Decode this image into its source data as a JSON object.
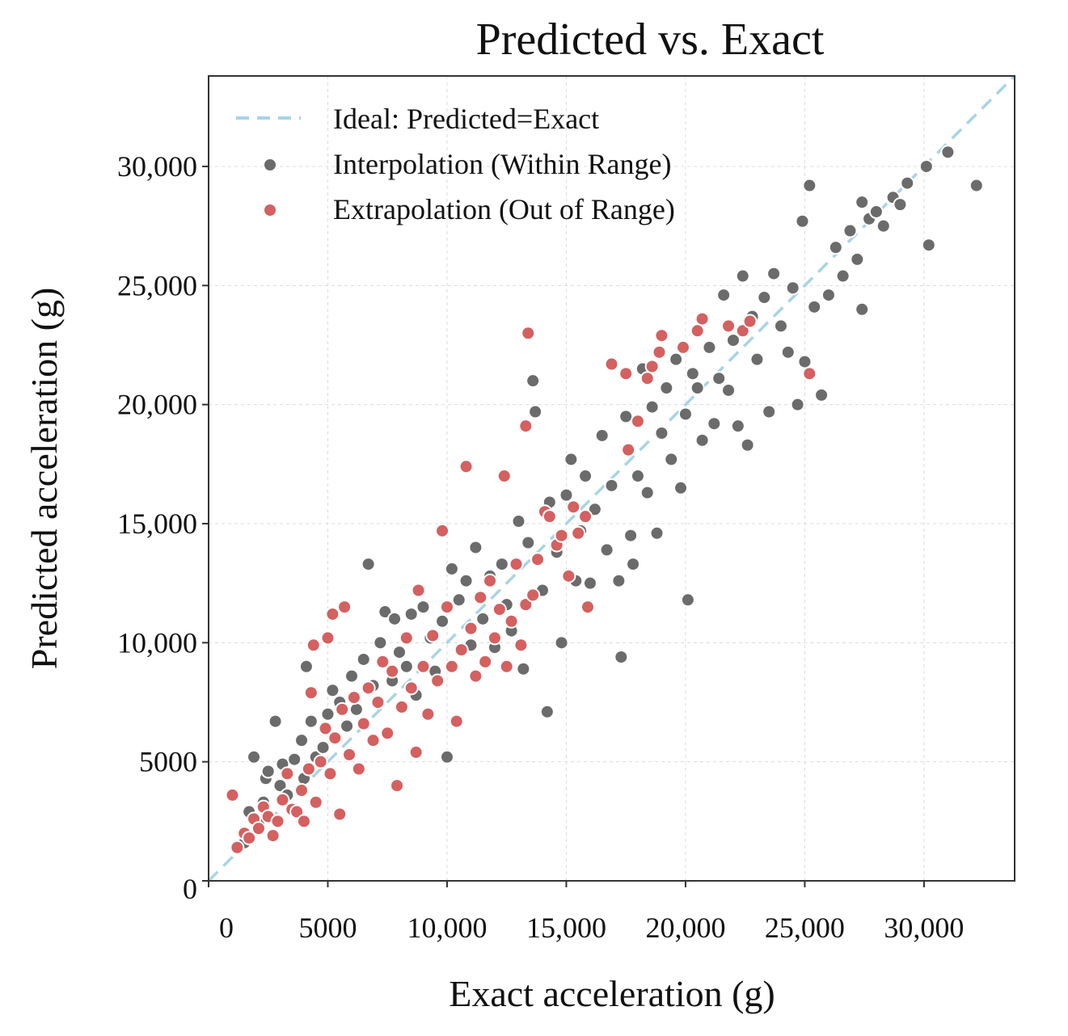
{
  "chart_data": {
    "type": "scatter",
    "title": "Predicted vs. Exact",
    "xlabel": "Exact acceleration (g)",
    "ylabel": "Predicted acceleration (g)",
    "xlim": [
      0,
      33800
    ],
    "ylim": [
      0,
      33800
    ],
    "xticks": [
      0,
      5000,
      10000,
      15000,
      20000,
      25000,
      30000
    ],
    "xtick_labels": [
      "0",
      "5000",
      "10,000",
      "15,000",
      "20,000",
      "25,000",
      "30,000"
    ],
    "yticks": [
      0,
      5000,
      10000,
      15000,
      20000,
      25000,
      30000
    ],
    "ytick_labels": [
      "0",
      "5000",
      "10,000",
      "15,000",
      "20,000",
      "25,000",
      "30,000"
    ],
    "grid": true,
    "legend_position": "top-left",
    "colors": {
      "ideal": "#a8d4e6",
      "interpolation": "#6b6b6b",
      "extrapolation": "#d46060"
    },
    "ideal_line": {
      "label": "Ideal: Predicted=Exact",
      "points": [
        [
          0,
          0
        ],
        [
          33800,
          33800
        ]
      ]
    },
    "series": [
      {
        "name": "Interpolation (Within Range)",
        "points": [
          [
            1500,
            1600
          ],
          [
            1700,
            2900
          ],
          [
            1900,
            5200
          ],
          [
            2100,
            2400
          ],
          [
            2300,
            3300
          ],
          [
            2400,
            4300
          ],
          [
            2500,
            4600
          ],
          [
            2800,
            6700
          ],
          [
            3000,
            4000
          ],
          [
            3100,
            4900
          ],
          [
            3300,
            3600
          ],
          [
            3600,
            5100
          ],
          [
            3900,
            5900
          ],
          [
            4000,
            4300
          ],
          [
            4100,
            9000
          ],
          [
            4300,
            6700
          ],
          [
            4500,
            5200
          ],
          [
            4800,
            5600
          ],
          [
            5000,
            7000
          ],
          [
            5200,
            8000
          ],
          [
            5500,
            7500
          ],
          [
            5800,
            6500
          ],
          [
            6000,
            8600
          ],
          [
            6200,
            7200
          ],
          [
            6500,
            9300
          ],
          [
            6700,
            13300
          ],
          [
            6900,
            8200
          ],
          [
            7200,
            10000
          ],
          [
            7400,
            11300
          ],
          [
            7700,
            8400
          ],
          [
            7800,
            11000
          ],
          [
            8000,
            9600
          ],
          [
            8300,
            9000
          ],
          [
            8500,
            11200
          ],
          [
            8700,
            7800
          ],
          [
            9000,
            11500
          ],
          [
            9300,
            10200
          ],
          [
            9500,
            8800
          ],
          [
            9800,
            10900
          ],
          [
            10000,
            5200
          ],
          [
            10200,
            13100
          ],
          [
            10500,
            11800
          ],
          [
            10800,
            12600
          ],
          [
            11000,
            9900
          ],
          [
            11200,
            14000
          ],
          [
            11500,
            11000
          ],
          [
            11800,
            12800
          ],
          [
            12000,
            9800
          ],
          [
            12300,
            13300
          ],
          [
            12500,
            11600
          ],
          [
            12700,
            10500
          ],
          [
            13000,
            15100
          ],
          [
            13200,
            8900
          ],
          [
            13400,
            14200
          ],
          [
            13600,
            21000
          ],
          [
            13700,
            19700
          ],
          [
            14000,
            12200
          ],
          [
            14200,
            7100
          ],
          [
            14300,
            15900
          ],
          [
            14600,
            13800
          ],
          [
            14800,
            10000
          ],
          [
            15000,
            16200
          ],
          [
            15200,
            17700
          ],
          [
            15400,
            12600
          ],
          [
            15600,
            14700
          ],
          [
            15800,
            17000
          ],
          [
            16000,
            12500
          ],
          [
            16200,
            15600
          ],
          [
            16500,
            18700
          ],
          [
            16700,
            13900
          ],
          [
            16900,
            16600
          ],
          [
            17200,
            12600
          ],
          [
            17300,
            9400
          ],
          [
            17500,
            19500
          ],
          [
            17700,
            14500
          ],
          [
            17800,
            13300
          ],
          [
            18000,
            17000
          ],
          [
            18200,
            21500
          ],
          [
            18400,
            16300
          ],
          [
            18600,
            19900
          ],
          [
            18800,
            14600
          ],
          [
            19000,
            18800
          ],
          [
            19200,
            20700
          ],
          [
            19400,
            17700
          ],
          [
            19600,
            21900
          ],
          [
            19800,
            16500
          ],
          [
            20000,
            19600
          ],
          [
            20100,
            11800
          ],
          [
            20300,
            21300
          ],
          [
            20500,
            20700
          ],
          [
            20700,
            18500
          ],
          [
            21000,
            22400
          ],
          [
            21200,
            19200
          ],
          [
            21400,
            21100
          ],
          [
            21600,
            24600
          ],
          [
            21800,
            20600
          ],
          [
            22000,
            22700
          ],
          [
            22200,
            19100
          ],
          [
            22400,
            25400
          ],
          [
            22600,
            18300
          ],
          [
            22800,
            23700
          ],
          [
            23000,
            21900
          ],
          [
            23300,
            24500
          ],
          [
            23500,
            19700
          ],
          [
            23700,
            25500
          ],
          [
            24000,
            23300
          ],
          [
            24300,
            22200
          ],
          [
            24500,
            24900
          ],
          [
            24700,
            20000
          ],
          [
            24900,
            27700
          ],
          [
            25000,
            21800
          ],
          [
            25200,
            29200
          ],
          [
            25400,
            24100
          ],
          [
            25700,
            20400
          ],
          [
            26000,
            24600
          ],
          [
            26300,
            26600
          ],
          [
            26600,
            25400
          ],
          [
            26900,
            27300
          ],
          [
            27200,
            26100
          ],
          [
            27400,
            28500
          ],
          [
            27400,
            24000
          ],
          [
            27700,
            27800
          ],
          [
            28000,
            28100
          ],
          [
            28300,
            27500
          ],
          [
            28700,
            28700
          ],
          [
            29000,
            28400
          ],
          [
            29300,
            29300
          ],
          [
            30100,
            30000
          ],
          [
            30200,
            26700
          ],
          [
            31000,
            30600
          ],
          [
            32200,
            29200
          ]
        ]
      },
      {
        "name": "Extrapolation (Out of Range)",
        "points": [
          [
            1000,
            3600
          ],
          [
            1200,
            1400
          ],
          [
            1500,
            2000
          ],
          [
            1700,
            1800
          ],
          [
            1900,
            2600
          ],
          [
            2100,
            2200
          ],
          [
            2300,
            3100
          ],
          [
            2500,
            2700
          ],
          [
            2700,
            1900
          ],
          [
            2900,
            2500
          ],
          [
            3100,
            3400
          ],
          [
            3300,
            4500
          ],
          [
            3500,
            3000
          ],
          [
            3700,
            2900
          ],
          [
            3900,
            3800
          ],
          [
            4000,
            2500
          ],
          [
            4200,
            4700
          ],
          [
            4300,
            7900
          ],
          [
            4400,
            9900
          ],
          [
            4500,
            3300
          ],
          [
            4700,
            5000
          ],
          [
            4900,
            6400
          ],
          [
            5000,
            10200
          ],
          [
            5100,
            4500
          ],
          [
            5200,
            11200
          ],
          [
            5300,
            6000
          ],
          [
            5500,
            2800
          ],
          [
            5600,
            7200
          ],
          [
            5700,
            11500
          ],
          [
            5900,
            5300
          ],
          [
            6100,
            7700
          ],
          [
            6300,
            4700
          ],
          [
            6500,
            6600
          ],
          [
            6700,
            8100
          ],
          [
            6900,
            5900
          ],
          [
            7100,
            7500
          ],
          [
            7300,
            9200
          ],
          [
            7500,
            6200
          ],
          [
            7700,
            8800
          ],
          [
            7900,
            4000
          ],
          [
            8100,
            7300
          ],
          [
            8300,
            10200
          ],
          [
            8500,
            8100
          ],
          [
            8700,
            5400
          ],
          [
            8800,
            12200
          ],
          [
            9000,
            9000
          ],
          [
            9200,
            7000
          ],
          [
            9400,
            10300
          ],
          [
            9600,
            8400
          ],
          [
            9800,
            14700
          ],
          [
            10000,
            11500
          ],
          [
            10200,
            9000
          ],
          [
            10400,
            6700
          ],
          [
            10600,
            9700
          ],
          [
            10800,
            17400
          ],
          [
            11000,
            10600
          ],
          [
            11200,
            8600
          ],
          [
            11400,
            11900
          ],
          [
            11600,
            9200
          ],
          [
            11800,
            12600
          ],
          [
            12000,
            10200
          ],
          [
            12200,
            11400
          ],
          [
            12400,
            17000
          ],
          [
            12500,
            9000
          ],
          [
            12700,
            10900
          ],
          [
            12900,
            13300
          ],
          [
            13100,
            9900
          ],
          [
            13300,
            11600
          ],
          [
            13300,
            19100
          ],
          [
            13400,
            23000
          ],
          [
            13600,
            12000
          ],
          [
            13800,
            13500
          ],
          [
            14100,
            15500
          ],
          [
            14300,
            15300
          ],
          [
            14600,
            14100
          ],
          [
            14800,
            14500
          ],
          [
            15100,
            12800
          ],
          [
            15300,
            15700
          ],
          [
            15500,
            14600
          ],
          [
            15800,
            15300
          ],
          [
            15900,
            11500
          ],
          [
            16900,
            21700
          ],
          [
            17500,
            21300
          ],
          [
            17600,
            18100
          ],
          [
            18000,
            19300
          ],
          [
            18400,
            21100
          ],
          [
            18600,
            21600
          ],
          [
            18900,
            22200
          ],
          [
            19000,
            22900
          ],
          [
            19900,
            22400
          ],
          [
            20500,
            23100
          ],
          [
            20700,
            23600
          ],
          [
            21800,
            23300
          ],
          [
            22400,
            23100
          ],
          [
            22700,
            23500
          ],
          [
            25200,
            21300
          ]
        ]
      }
    ]
  }
}
